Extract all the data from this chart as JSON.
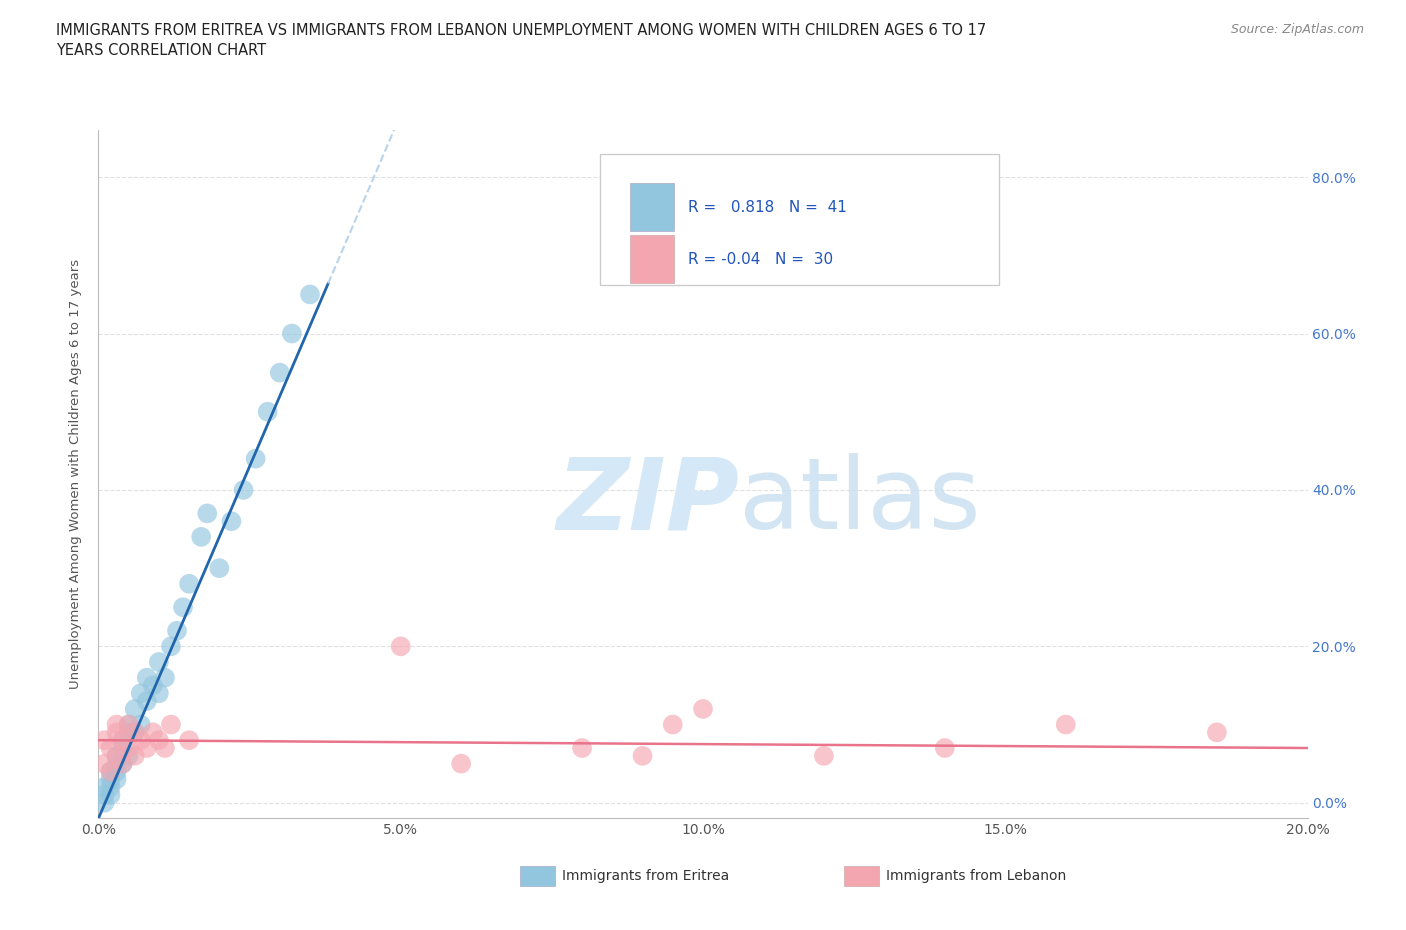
{
  "title": "IMMIGRANTS FROM ERITREA VS IMMIGRANTS FROM LEBANON UNEMPLOYMENT AMONG WOMEN WITH CHILDREN AGES 6 TO 17\nYEARS CORRELATION CHART",
  "source": "Source: ZipAtlas.com",
  "ylabel": "Unemployment Among Women with Children Ages 6 to 17 years",
  "xlim": [
    0.0,
    0.2
  ],
  "ylim": [
    -0.02,
    0.86
  ],
  "xticks": [
    0.0,
    0.05,
    0.1,
    0.15,
    0.2
  ],
  "yticks": [
    0.0,
    0.2,
    0.4,
    0.6,
    0.8
  ],
  "ytick_labels_right": [
    "0.0%",
    "20.0%",
    "40.0%",
    "60.0%",
    "80.0%"
  ],
  "xtick_labels": [
    "0.0%",
    "5.0%",
    "10.0%",
    "15.0%",
    "20.0%"
  ],
  "eritrea_R": 0.818,
  "eritrea_N": 41,
  "lebanon_R": -0.04,
  "lebanon_N": 30,
  "eritrea_color": "#92c5de",
  "lebanon_color": "#f4a6b0",
  "eritrea_line_color": "#2166ac",
  "lebanon_line_color": "#e8738a",
  "dashed_color": "#b8d4ea",
  "watermark_color": "#d4e8f8",
  "eritrea_x": [
    0.001,
    0.001,
    0.001,
    0.002,
    0.002,
    0.002,
    0.002,
    0.003,
    0.003,
    0.003,
    0.003,
    0.004,
    0.004,
    0.004,
    0.005,
    0.005,
    0.005,
    0.006,
    0.006,
    0.007,
    0.007,
    0.008,
    0.008,
    0.009,
    0.01,
    0.01,
    0.011,
    0.012,
    0.013,
    0.014,
    0.015,
    0.017,
    0.018,
    0.02,
    0.022,
    0.024,
    0.026,
    0.028,
    0.03,
    0.032,
    0.035
  ],
  "eritrea_y": [
    0.01,
    0.02,
    0.0,
    0.03,
    0.01,
    0.04,
    0.02,
    0.03,
    0.05,
    0.06,
    0.04,
    0.05,
    0.07,
    0.08,
    0.06,
    0.09,
    0.1,
    0.09,
    0.12,
    0.1,
    0.14,
    0.13,
    0.16,
    0.15,
    0.14,
    0.18,
    0.16,
    0.2,
    0.22,
    0.25,
    0.28,
    0.34,
    0.37,
    0.3,
    0.36,
    0.4,
    0.44,
    0.5,
    0.55,
    0.6,
    0.65
  ],
  "lebanon_x": [
    0.001,
    0.001,
    0.002,
    0.002,
    0.003,
    0.003,
    0.003,
    0.004,
    0.004,
    0.005,
    0.005,
    0.006,
    0.006,
    0.007,
    0.008,
    0.009,
    0.01,
    0.011,
    0.012,
    0.015,
    0.05,
    0.06,
    0.08,
    0.09,
    0.095,
    0.1,
    0.12,
    0.14,
    0.16,
    0.185
  ],
  "lebanon_y": [
    0.05,
    0.08,
    0.04,
    0.07,
    0.06,
    0.09,
    0.1,
    0.05,
    0.08,
    0.07,
    0.1,
    0.06,
    0.09,
    0.08,
    0.07,
    0.09,
    0.08,
    0.07,
    0.1,
    0.08,
    0.2,
    0.05,
    0.07,
    0.06,
    0.1,
    0.12,
    0.06,
    0.07,
    0.1,
    0.09
  ],
  "eritrea_line_slope": 18.0,
  "eritrea_line_intercept": -0.02,
  "lebanon_line_slope": -0.05,
  "lebanon_line_intercept": 0.08
}
